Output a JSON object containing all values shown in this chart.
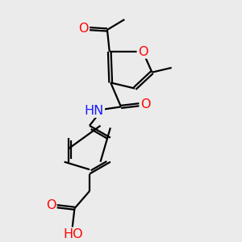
{
  "bg_color": "#ebebeb",
  "bond_color": "#000000",
  "bond_width": 1.6,
  "dbl_off": 0.06,
  "atom_colors": {
    "O": "#ff0000",
    "N": "#1a1aff",
    "C": "#000000",
    "H": "#708080"
  },
  "fs": 11.5
}
